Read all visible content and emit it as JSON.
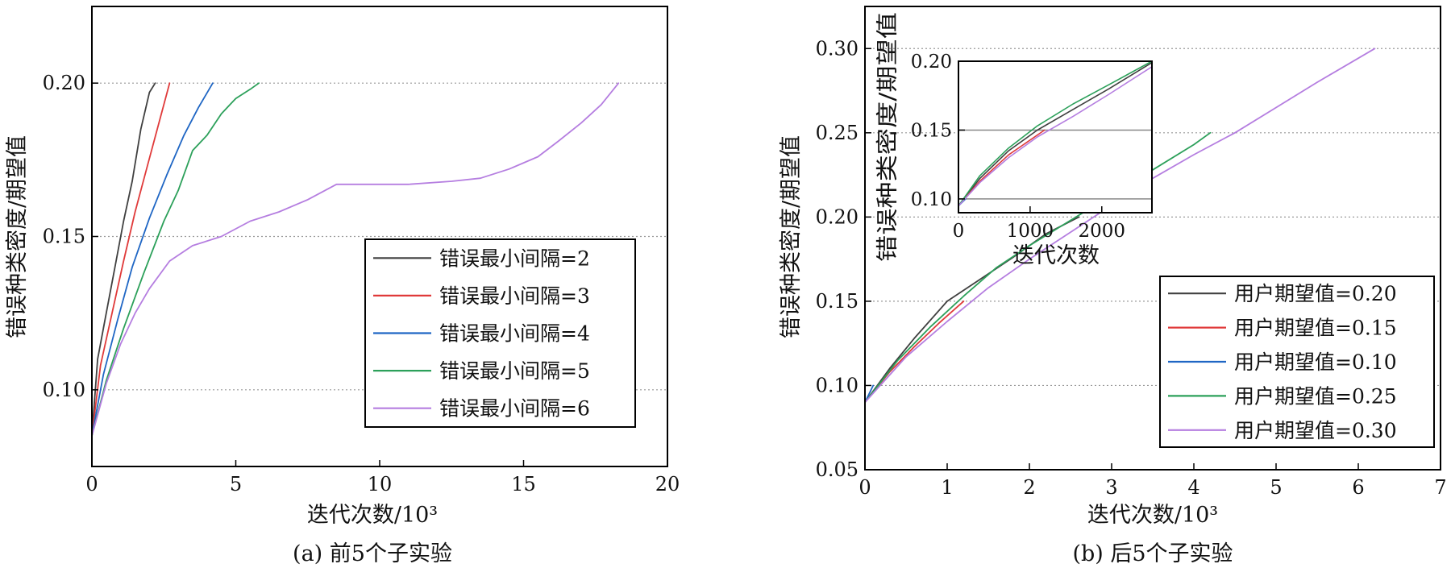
{
  "chart_data": [
    {
      "type": "line",
      "caption": "(a) 前5个子实验",
      "xlabel": "迭代次数/10³",
      "ylabel": "错误种类密度/期望值",
      "xlim": [
        0,
        20
      ],
      "ylim": [
        0.075,
        0.225
      ],
      "xticks": [
        0,
        5,
        10,
        15,
        20
      ],
      "xtick_labels": [
        "0",
        "5",
        "10",
        "15",
        "20"
      ],
      "yticks": [
        0.1,
        0.15,
        0.2
      ],
      "ytick_labels": [
        "0.10",
        "0.15",
        "0.20"
      ],
      "grid": "horizontal dotted",
      "legend_position": "lower-right",
      "series": [
        {
          "name": "错误最小间隔=2",
          "color": "#404040",
          "x": [
            0,
            0.2,
            0.5,
            0.8,
            1.1,
            1.4,
            1.7,
            2.0,
            2.2
          ],
          "y": [
            0.085,
            0.11,
            0.125,
            0.14,
            0.155,
            0.168,
            0.185,
            0.197,
            0.2
          ]
        },
        {
          "name": "错误最小间隔=3",
          "color": "#e03a3a",
          "x": [
            0,
            0.3,
            0.7,
            1.1,
            1.5,
            1.9,
            2.3,
            2.7
          ],
          "y": [
            0.085,
            0.108,
            0.125,
            0.142,
            0.158,
            0.172,
            0.186,
            0.2
          ]
        },
        {
          "name": "错误最小间隔=4",
          "color": "#1f66c4",
          "x": [
            0,
            0.4,
            0.9,
            1.4,
            2.0,
            2.6,
            3.2,
            3.7,
            4.2
          ],
          "y": [
            0.085,
            0.105,
            0.123,
            0.14,
            0.156,
            0.17,
            0.183,
            0.192,
            0.2
          ]
        },
        {
          "name": "错误最小间隔=5",
          "color": "#2ca05a",
          "x": [
            0,
            0.5,
            1.1,
            1.8,
            2.5,
            3.0,
            3.5,
            4.0,
            4.5,
            5.0,
            5.5,
            5.8
          ],
          "y": [
            0.085,
            0.103,
            0.12,
            0.138,
            0.155,
            0.165,
            0.178,
            0.183,
            0.19,
            0.195,
            0.198,
            0.2
          ]
        },
        {
          "name": "错误最小间隔=6",
          "color": "#b57ee0",
          "x": [
            0,
            0.5,
            1.0,
            1.5,
            2.0,
            2.7,
            3.5,
            4.5,
            5.5,
            6.5,
            7.5,
            8.5,
            9.5,
            11,
            12.5,
            13.5,
            14.5,
            15.5,
            16.2,
            17.0,
            17.7,
            18.3
          ],
          "y": [
            0.085,
            0.102,
            0.115,
            0.125,
            0.133,
            0.142,
            0.147,
            0.15,
            0.155,
            0.158,
            0.162,
            0.167,
            0.167,
            0.167,
            0.168,
            0.169,
            0.172,
            0.176,
            0.181,
            0.187,
            0.193,
            0.2
          ]
        }
      ]
    },
    {
      "type": "line",
      "caption": "(b) 后5个子实验",
      "xlabel": "迭代次数/10³",
      "ylabel": "错误种类密度/期望值",
      "xlim": [
        0,
        7
      ],
      "ylim": [
        0.05,
        0.325
      ],
      "xticks": [
        0,
        1,
        2,
        3,
        4,
        5,
        6,
        7
      ],
      "xtick_labels": [
        "0",
        "1",
        "2",
        "3",
        "4",
        "5",
        "6",
        "7"
      ],
      "yticks": [
        0.05,
        0.1,
        0.15,
        0.2,
        0.25,
        0.3
      ],
      "ytick_labels": [
        "0.05",
        "0.10",
        "0.15",
        "0.20",
        "0.25",
        "0.30"
      ],
      "grid": "horizontal dotted",
      "legend_position": "lower-right",
      "series": [
        {
          "name": "用户期望值=0.20",
          "color": "#404040",
          "x": [
            0,
            0.3,
            0.6,
            1.0,
            1.4,
            1.8,
            2.2,
            2.6
          ],
          "y": [
            0.09,
            0.11,
            0.128,
            0.15,
            0.163,
            0.176,
            0.19,
            0.2
          ]
        },
        {
          "name": "用户期望值=0.15",
          "color": "#e03a3a",
          "x": [
            0,
            0.3,
            0.6,
            0.9,
            1.2
          ],
          "y": [
            0.09,
            0.108,
            0.123,
            0.137,
            0.15
          ]
        },
        {
          "name": "用户期望值=0.10",
          "color": "#1f66c4",
          "x": [
            0,
            0.1
          ],
          "y": [
            0.09,
            0.1
          ]
        },
        {
          "name": "用户期望值=0.25",
          "color": "#2ca05a",
          "x": [
            0,
            0.4,
            0.8,
            1.2,
            1.6,
            2.0,
            2.5,
            3.0,
            3.5,
            4.0,
            4.2
          ],
          "y": [
            0.09,
            0.115,
            0.135,
            0.153,
            0.17,
            0.183,
            0.198,
            0.213,
            0.228,
            0.243,
            0.25
          ]
        },
        {
          "name": "用户期望值=0.30",
          "color": "#b57ee0",
          "x": [
            0,
            0.5,
            1.0,
            1.5,
            2.0,
            2.5,
            3.0,
            3.5,
            4.0,
            4.5,
            5.0,
            5.5,
            6.2
          ],
          "y": [
            0.09,
            0.117,
            0.138,
            0.158,
            0.175,
            0.191,
            0.207,
            0.223,
            0.237,
            0.25,
            0.265,
            0.28,
            0.3
          ]
        }
      ],
      "inset": {
        "xlabel": "迭代次数",
        "ylabel": "错误种类密度/期望值",
        "xlim": [
          0,
          2700
        ],
        "ylim": [
          0.09,
          0.2
        ],
        "xticks": [
          0,
          1000,
          2000
        ],
        "xtick_labels": [
          "0",
          "1000",
          "2000"
        ],
        "yticks": [
          0.1,
          0.15,
          0.2
        ],
        "ytick_labels": [
          "0.10",
          "0.15",
          "0.20"
        ],
        "series": [
          {
            "color": "#404040",
            "x": [
              0,
              300,
              700,
              1100,
              1600,
              2100,
              2700
            ],
            "y": [
              0.095,
              0.115,
              0.135,
              0.15,
              0.165,
              0.18,
              0.199
            ]
          },
          {
            "color": "#e03a3a",
            "x": [
              0,
              300,
              700,
              1200
            ],
            "y": [
              0.095,
              0.113,
              0.132,
              0.15
            ]
          },
          {
            "color": "#1f66c4",
            "x": [
              0,
              100
            ],
            "y": [
              0.095,
              0.1
            ]
          },
          {
            "color": "#2ca05a",
            "x": [
              0,
              300,
              700,
              1100,
              1600,
              2100,
              2700
            ],
            "y": [
              0.095,
              0.117,
              0.137,
              0.153,
              0.169,
              0.183,
              0.2
            ]
          },
          {
            "color": "#b57ee0",
            "x": [
              0,
              300,
              700,
              1100,
              1600,
              2100,
              2700
            ],
            "y": [
              0.095,
              0.112,
              0.13,
              0.145,
              0.16,
              0.176,
              0.196
            ]
          }
        ]
      }
    }
  ]
}
